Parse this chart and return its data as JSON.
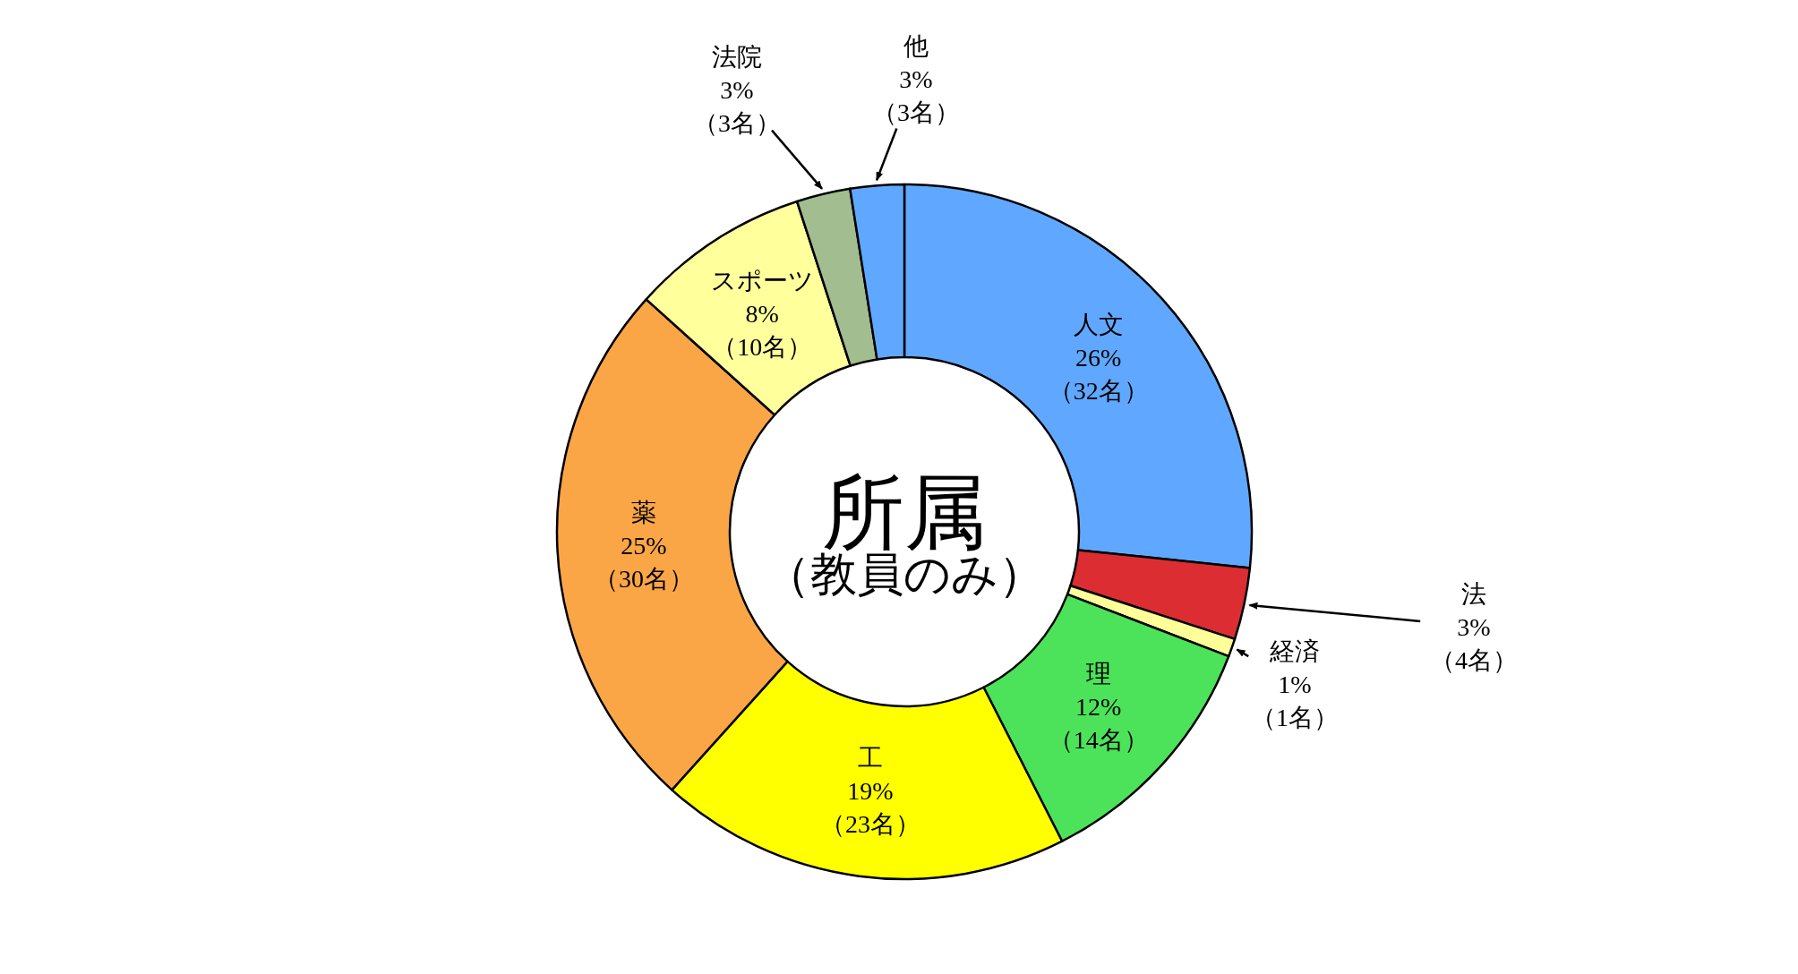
{
  "chart_data": {
    "type": "donut",
    "title": "所属",
    "subtitle": "（教員のみ）",
    "categories": [
      "人文",
      "法",
      "経済",
      "理",
      "工",
      "薬",
      "スポーツ",
      "法院",
      "他"
    ],
    "values": [
      32,
      4,
      1,
      14,
      23,
      30,
      10,
      3,
      3
    ],
    "colors": [
      "#60a8ff",
      "#dc2d32",
      "#ffff99",
      "#4ce35a",
      "#ffff00",
      "#fba646",
      "#ffff9c",
      "#a2bd8f",
      "#60a8ff"
    ],
    "value_labels": [
      "26% （32名）",
      "3% （4名）",
      "1% （1名）",
      "12% （14名）",
      "19% （23名）",
      "25% （30名）",
      "8% （10名）",
      "3% （3名）",
      "3% （3名）"
    ]
  }
}
